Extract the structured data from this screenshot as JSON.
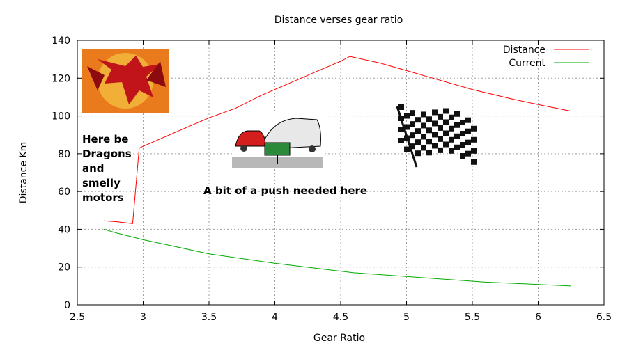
{
  "chart_data": {
    "type": "line",
    "title": "Distance verses gear ratio",
    "xlabel": "Gear Ratio",
    "ylabel": "Distance Km",
    "xlim": [
      2.5,
      6.5
    ],
    "ylim": [
      0,
      140
    ],
    "xticks": [
      "2.5",
      "3",
      "3.5",
      "4",
      "4.5",
      "5",
      "5.5",
      "6",
      "6.5"
    ],
    "yticks": [
      "0",
      "20",
      "40",
      "60",
      "80",
      "100",
      "120",
      "140"
    ],
    "grid": true,
    "legend_position": "top-right",
    "series": [
      {
        "name": "Distance",
        "color": "#ff0000",
        "points": [
          [
            2.7,
            44.5
          ],
          [
            2.8,
            44
          ],
          [
            2.92,
            43
          ],
          [
            2.97,
            83
          ],
          [
            3.1,
            87
          ],
          [
            3.3,
            93
          ],
          [
            3.5,
            99
          ],
          [
            3.7,
            104
          ],
          [
            3.9,
            111
          ],
          [
            4.1,
            117
          ],
          [
            4.3,
            123
          ],
          [
            4.5,
            129
          ],
          [
            4.57,
            131.5
          ],
          [
            4.6,
            131
          ],
          [
            4.8,
            128
          ],
          [
            5.0,
            124
          ],
          [
            5.2,
            120
          ],
          [
            5.5,
            114
          ],
          [
            5.8,
            109
          ],
          [
            6.0,
            106
          ],
          [
            6.25,
            102.5
          ]
        ]
      },
      {
        "name": "Current",
        "color": "#00aa00",
        "points": [
          [
            2.7,
            40
          ],
          [
            2.8,
            38
          ],
          [
            3.0,
            34.5
          ],
          [
            3.2,
            31.5
          ],
          [
            3.5,
            27
          ],
          [
            3.8,
            24
          ],
          [
            4.0,
            22
          ],
          [
            4.3,
            19.5
          ],
          [
            4.6,
            17
          ],
          [
            5.0,
            15
          ],
          [
            5.3,
            13.5
          ],
          [
            5.6,
            12
          ],
          [
            6.0,
            10.8
          ],
          [
            6.25,
            10
          ]
        ]
      }
    ],
    "annotations": [
      "Here be Dragons and smelly motors",
      "A bit of a push needed here"
    ]
  },
  "images": {
    "dragon": "dragon-image",
    "car_push": "car-push-cartoon",
    "checkered_flag": "checkered-flag-image"
  }
}
